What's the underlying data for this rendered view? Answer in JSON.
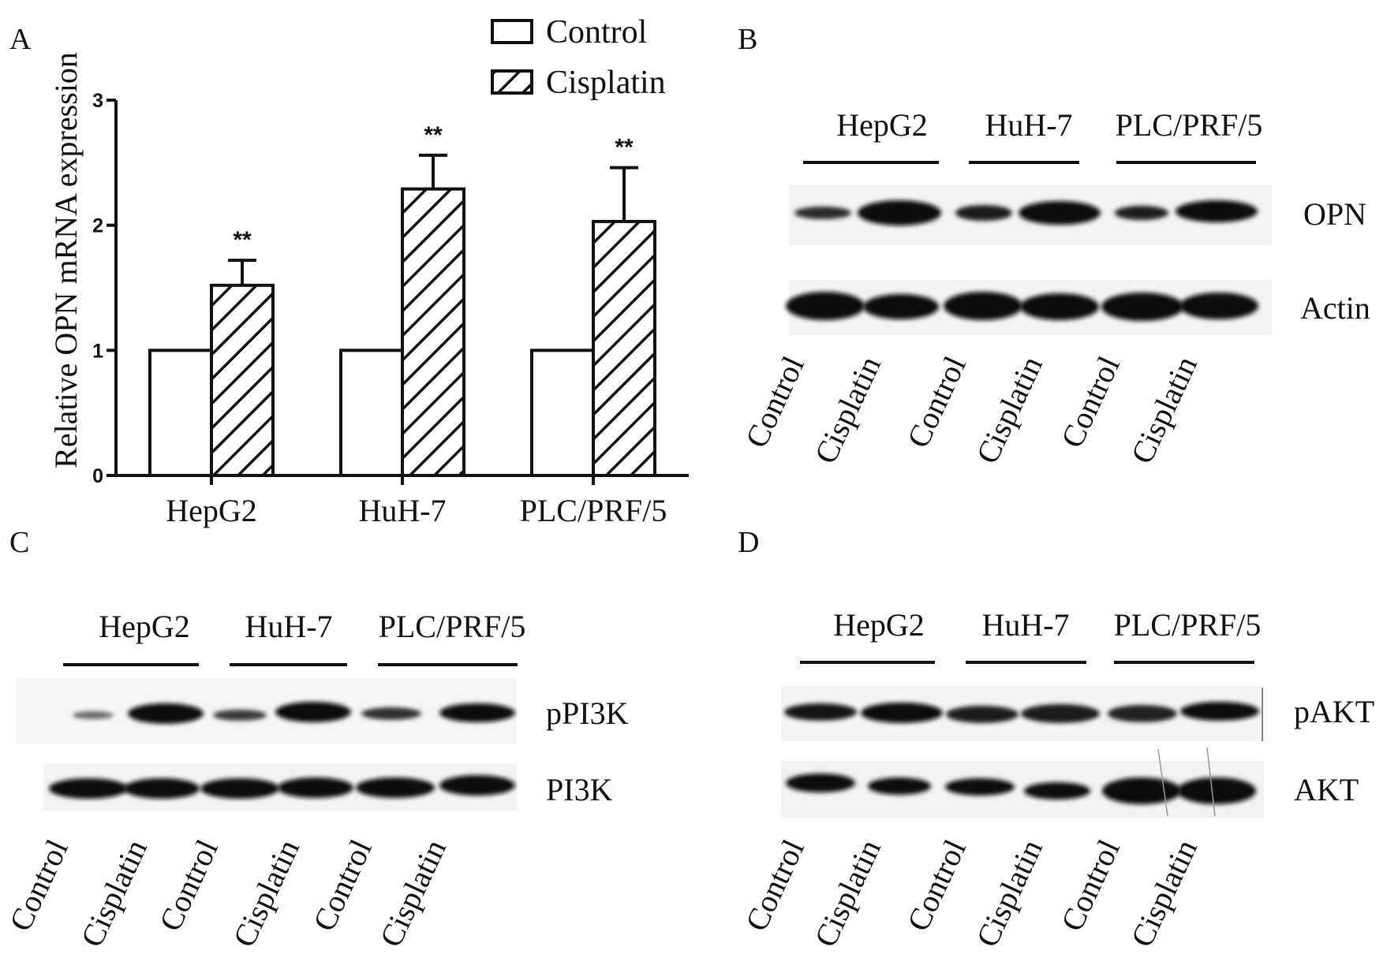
{
  "panel_labels": {
    "a": "A",
    "b": "B",
    "c": "C",
    "d": "D"
  },
  "chart_data": {
    "type": "bar",
    "ylabel": "Relative OPN mRNA expression",
    "xlabel": "",
    "ylim": [
      0,
      3
    ],
    "yticks": [
      "0",
      "1",
      "2",
      "3"
    ],
    "categories": [
      "HepG2",
      "HuH-7",
      "PLC/PRF/5"
    ],
    "series": [
      {
        "name": "Control",
        "values": [
          1.0,
          1.0,
          1.0
        ],
        "errors": [
          0,
          0,
          0
        ],
        "pattern": "empty"
      },
      {
        "name": "Cisplatin",
        "values": [
          1.52,
          2.29,
          2.03
        ],
        "errors": [
          0.2,
          0.27,
          0.43
        ],
        "pattern": "hatched"
      }
    ],
    "annotations": [
      "**",
      "**",
      "**"
    ],
    "legend_position": "top-right",
    "grid": false
  },
  "blots": {
    "cell_lines": [
      "HepG2",
      "HuH-7",
      "PLC/PRF/5"
    ],
    "lanes": [
      "Control",
      "Cisplatin",
      "Control",
      "Cisplatin",
      "Control",
      "Cisplatin"
    ],
    "panel_b": {
      "bands": [
        "OPN",
        "Actin"
      ]
    },
    "panel_c": {
      "bands": [
        "pPI3K",
        "PI3K"
      ]
    },
    "panel_d": {
      "bands": [
        "pAKT",
        "AKT"
      ]
    }
  }
}
